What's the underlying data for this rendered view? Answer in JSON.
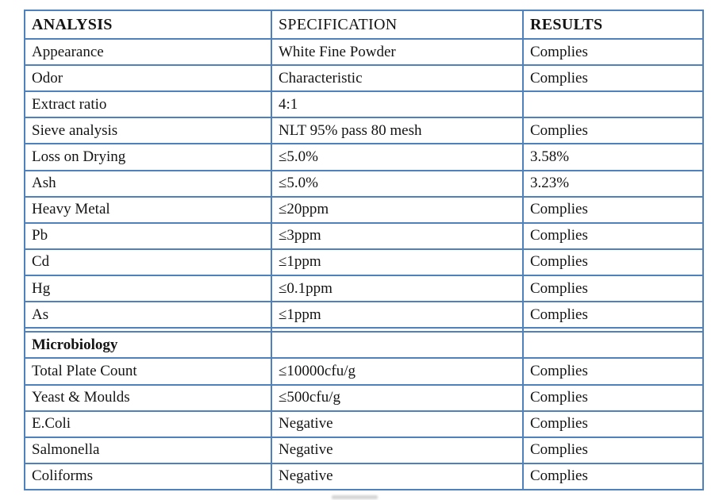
{
  "colors": {
    "border": "#4f81bd",
    "text": "#141414",
    "background": "#ffffff"
  },
  "table": {
    "headers": [
      {
        "key": "analysis",
        "label": "ANALYSIS",
        "bold": true
      },
      {
        "key": "specification",
        "label": "SPECIFICATION",
        "bold": false
      },
      {
        "key": "results",
        "label": "RESULTS",
        "bold": true
      }
    ],
    "rows": [
      {
        "analysis": "Appearance",
        "specification": "White Fine Powder",
        "results": "Complies",
        "bold": false
      },
      {
        "analysis": "Odor",
        "specification": "Characteristic",
        "results": "Complies",
        "bold": false
      },
      {
        "analysis": "Extract ratio",
        "specification": "4:1",
        "results": "",
        "bold": false
      },
      {
        "analysis": "Sieve analysis",
        "specification": "NLT 95% pass 80 mesh",
        "results": "Complies",
        "bold": false
      },
      {
        "analysis": "Loss on Drying",
        "specification": "≤5.0%",
        "results": "3.58%",
        "bold": false
      },
      {
        "analysis": "Ash",
        "specification": "≤5.0%",
        "results": "3.23%",
        "bold": false
      },
      {
        "analysis": "Heavy Metal",
        "specification": "≤20ppm",
        "results": "Complies",
        "bold": false
      },
      {
        "analysis": "Pb",
        "specification": "≤3ppm",
        "results": "Complies",
        "bold": false
      },
      {
        "analysis": "Cd",
        "specification": "≤1ppm",
        "results": "Complies",
        "bold": false
      },
      {
        "analysis": "Hg",
        "specification": "≤0.1ppm",
        "results": "Complies",
        "bold": false
      },
      {
        "analysis": "As",
        "specification": "≤1ppm",
        "results": "Complies",
        "bold": false
      },
      {
        "analysis": "",
        "specification": "",
        "results": "",
        "bold": false
      },
      {
        "analysis": "Microbiology",
        "specification": "",
        "results": "",
        "bold": true
      },
      {
        "analysis": "Total Plate Count",
        "specification": "≤10000cfu/g",
        "results": "Complies",
        "bold": false
      },
      {
        "analysis": "Yeast & Moulds",
        "specification": "≤500cfu/g",
        "results": "Complies",
        "bold": false
      },
      {
        "analysis": "E.Coli",
        "specification": "Negative",
        "results": "Complies",
        "bold": false
      },
      {
        "analysis": "Salmonella",
        "specification": "Negative",
        "results": "Complies",
        "bold": false
      },
      {
        "analysis": "Coliforms",
        "specification": "Negative",
        "results": "Complies",
        "bold": false
      }
    ]
  }
}
